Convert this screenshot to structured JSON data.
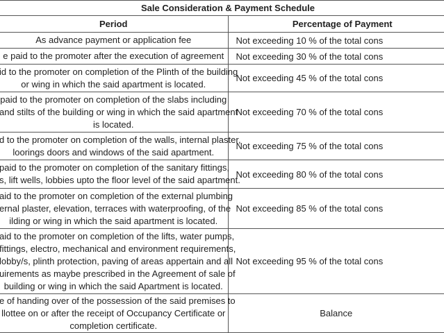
{
  "title": "Sale Consideration & Payment Schedule",
  "header": {
    "period": "Period",
    "percentage": "Percentage of Payment"
  },
  "rows": [
    {
      "period": [
        "As advance payment or application fee"
      ],
      "percentage": "Not exceeding 10 % of the total cons"
    },
    {
      "period": [
        "e paid to the promoter after the execution of agreement"
      ],
      "percentage": "Not exceeding 30 % of the total cons"
    },
    {
      "period": [
        "id to the promoter on completion of the Plinth of the building",
        "or wing in which the said apartment is located."
      ],
      "percentage": "Not exceeding 45 % of the total cons"
    },
    {
      "period": [
        "paid to the promoter on completion of the slabs including",
        "and stilts of the building or wing in which the said apartment",
        "is located."
      ],
      "percentage": "Not exceeding 70 % of the total cons"
    },
    {
      "period": [
        "d to the promoter on completion of the walls, internal plaster,",
        "loorings doors and windows of the said apartment."
      ],
      "percentage": "Not exceeding 75 % of the total cons"
    },
    {
      "period": [
        "paid to the promoter on completion of the sanitary fittings,",
        "s, lift wells, lobbies upto the floor level of the said apartment."
      ],
      "percentage": "Not exceeding 80 % of the total cons"
    },
    {
      "period": [
        "aid to the promoter on completion of the external plumbing",
        "ernal plaster, elevation, terraces with waterproofing, of the",
        "ilding or wing in which the said apartment is located."
      ],
      "percentage": "Not exceeding 85 % of the total cons"
    },
    {
      "period": [
        "aid to the promoter on completion of the lifts, water pumps,",
        "fittings, electro, mechanical and environment requirements,",
        "lobby/s, plinth protection, paving of areas appertain and all",
        "uirements  as maybe prescribed in the Agreement of sale of",
        "building or wing in which the said Apartment is located."
      ],
      "percentage": "Not exceeding 95 % of the total cons"
    },
    {
      "period": [
        "e of handing over of the possession of the said premises to",
        "llottee on or after the receipt of Occupancy Certificate or",
        "completion certificate."
      ],
      "percentage": "Balance"
    }
  ]
}
